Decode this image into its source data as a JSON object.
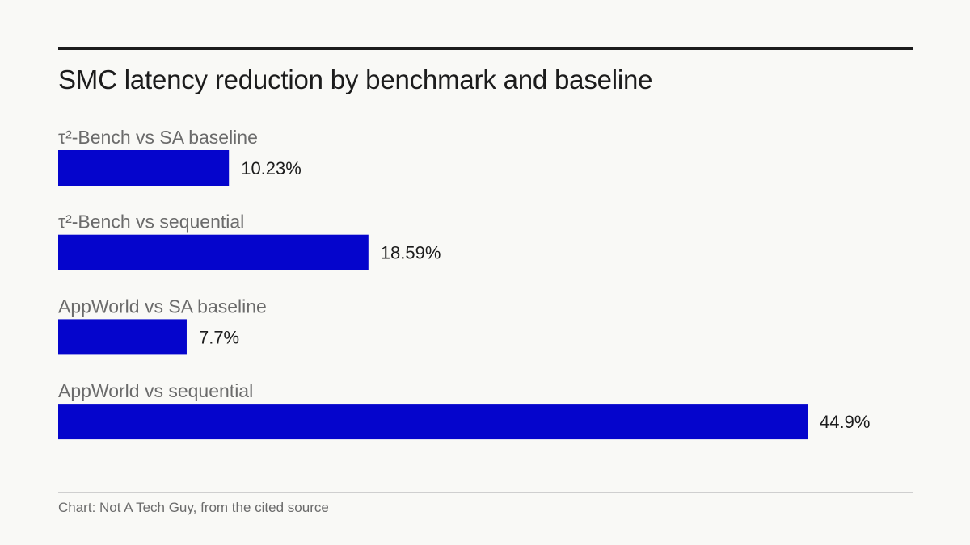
{
  "chart_data": {
    "type": "bar",
    "orientation": "horizontal",
    "title": "SMC latency reduction by benchmark and baseline",
    "categories": [
      "τ²-Bench vs SA baseline",
      "τ²-Bench vs sequential",
      "AppWorld vs SA baseline",
      "AppWorld vs sequential"
    ],
    "values": [
      10.23,
      18.59,
      7.7,
      44.9
    ],
    "value_labels": [
      "10.23%",
      "18.59%",
      "7.7%",
      "44.9%"
    ],
    "unit": "%",
    "xlim": [
      0,
      50
    ],
    "grid": false,
    "legend": "none",
    "colors": {
      "bar": "#0505cc",
      "text": "#1c1c1c",
      "muted": "#6b6b6b"
    }
  },
  "footer": {
    "source": "Chart: Not A Tech Guy, from the cited source"
  }
}
